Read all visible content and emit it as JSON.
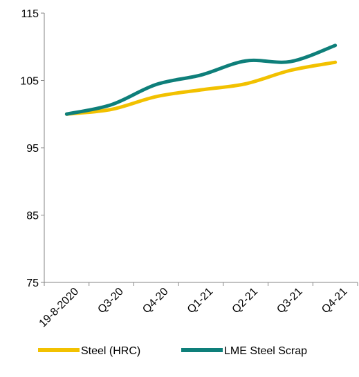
{
  "chart_data": {
    "type": "line",
    "categories": [
      "19-8-2020",
      "Q3-20",
      "Q4-20",
      "Q1-21",
      "Q2-21",
      "Q3-21",
      "Q4-21"
    ],
    "series": [
      {
        "name": "Steel (HRC)",
        "color": "#f2c100",
        "values": [
          100,
          100.7,
          102.6,
          103.6,
          104.5,
          106.5,
          107.7
        ]
      },
      {
        "name": "LME Steel Scrap",
        "color": "#0e7f7a",
        "values": [
          100,
          101.4,
          104.4,
          105.8,
          107.9,
          107.8,
          110.2
        ]
      }
    ],
    "ylim": [
      75,
      115
    ],
    "yticks": [
      75,
      85,
      95,
      105,
      115
    ],
    "grid": false,
    "legend": "bottom"
  }
}
